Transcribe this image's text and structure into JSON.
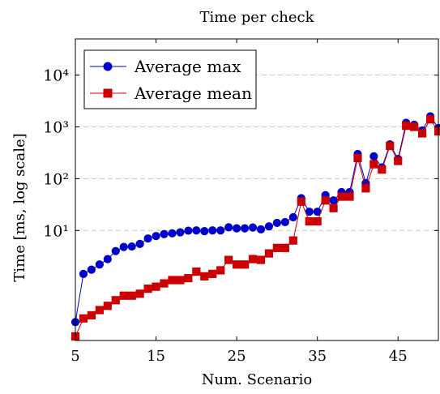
{
  "chart_data": {
    "type": "line",
    "title": "Time per check",
    "xlabel": "Num. Scenario",
    "ylabel": "Time [ms, log scale]",
    "x_ticks": [
      5,
      15,
      25,
      35,
      45
    ],
    "y_ticks": [
      {
        "value": 10,
        "label": "10¹"
      },
      {
        "value": 100,
        "label": "10²"
      },
      {
        "value": 1000,
        "label": "10³"
      },
      {
        "value": 10000,
        "label": "10⁴"
      }
    ],
    "xlim": [
      5,
      50
    ],
    "ylim": [
      0.075,
      50000
    ],
    "y_scale": "log",
    "grid": "major y, dashed",
    "legend_position": "top-left",
    "series": [
      {
        "name": "Average max",
        "color": "#0000cc",
        "marker": "circle",
        "x": [
          5,
          6,
          7,
          8,
          9,
          10,
          11,
          12,
          13,
          14,
          15,
          16,
          17,
          18,
          19,
          20,
          21,
          22,
          23,
          24,
          25,
          26,
          27,
          28,
          29,
          30,
          31,
          32,
          33,
          34,
          35,
          36,
          37,
          38,
          39,
          40,
          41,
          42,
          43,
          44,
          45,
          46,
          47,
          48,
          49,
          50
        ],
        "values": [
          0.17,
          1.45,
          1.75,
          2.2,
          2.8,
          4.0,
          4.8,
          4.9,
          5.5,
          7.0,
          7.8,
          8.5,
          8.8,
          9.2,
          9.9,
          10.0,
          9.7,
          10.0,
          10.0,
          11.5,
          11.0,
          11.0,
          11.4,
          10.5,
          12.0,
          14.0,
          14.5,
          18.0,
          42.0,
          23.0,
          23.0,
          48.0,
          38.0,
          55.0,
          55.0,
          300.0,
          82.0,
          270.0,
          165.0,
          460.0,
          240.0,
          1200.0,
          1100.0,
          850.0,
          1600.0,
          950.0
        ]
      },
      {
        "name": "Average mean",
        "color": "#cc0000",
        "marker": "square",
        "x": [
          5,
          6,
          7,
          8,
          9,
          10,
          11,
          12,
          13,
          14,
          15,
          16,
          17,
          18,
          19,
          20,
          21,
          22,
          23,
          24,
          25,
          26,
          27,
          28,
          29,
          30,
          31,
          32,
          33,
          34,
          35,
          36,
          37,
          38,
          39,
          40,
          41,
          42,
          43,
          44,
          45,
          46,
          47,
          48,
          49,
          50
        ],
        "values": [
          0.09,
          0.2,
          0.23,
          0.29,
          0.35,
          0.45,
          0.55,
          0.55,
          0.6,
          0.75,
          0.82,
          0.95,
          1.1,
          1.1,
          1.2,
          1.6,
          1.3,
          1.45,
          1.7,
          2.7,
          2.2,
          2.2,
          2.8,
          2.7,
          3.6,
          4.6,
          4.6,
          6.4,
          36.0,
          15.0,
          15.0,
          38.0,
          27.0,
          45.0,
          45.0,
          250.0,
          65.0,
          190.0,
          150.0,
          430.0,
          220.0,
          1050.0,
          1000.0,
          750.0,
          1400.0,
          820.0
        ]
      }
    ]
  }
}
